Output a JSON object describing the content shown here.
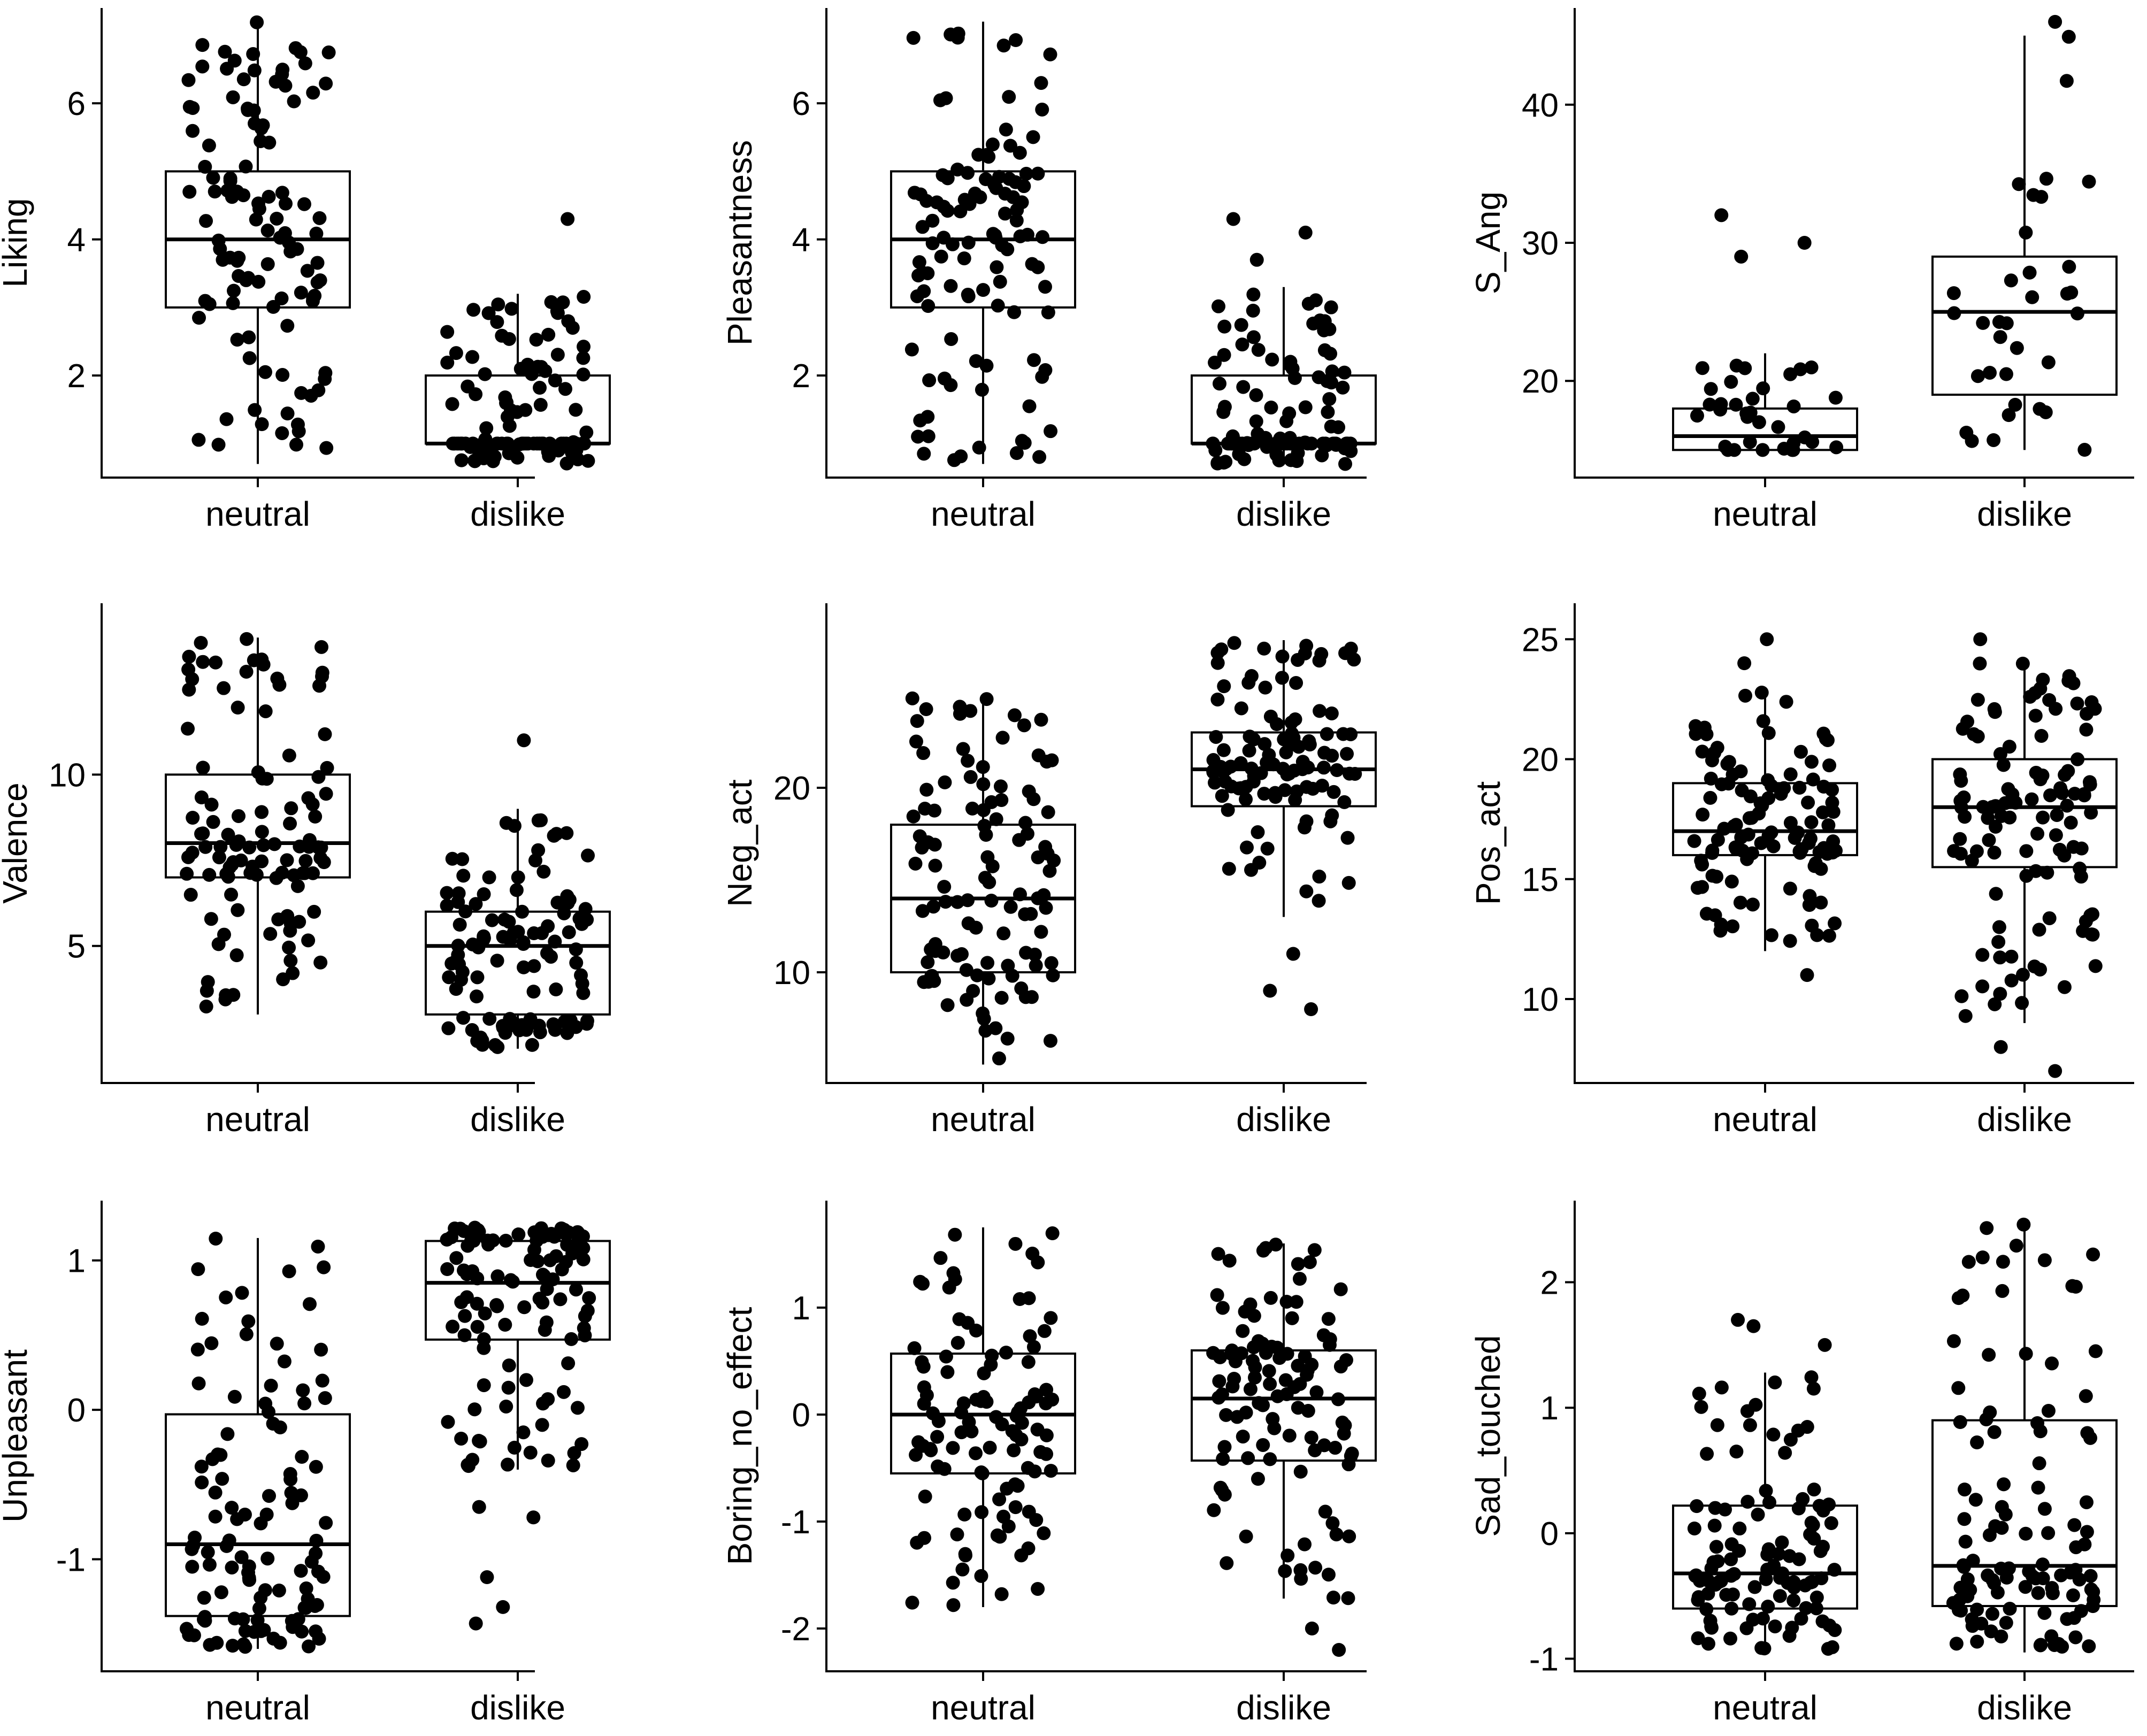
{
  "chart_data": [
    {
      "type": "box",
      "ylabel": "Liking",
      "categories": [
        "neutral",
        "dislike"
      ],
      "ylim": [
        0.5,
        7.4
      ],
      "yticks": [
        2,
        4,
        6
      ],
      "boxes": [
        {
          "category": "neutral",
          "min": 0.7,
          "q1": 3,
          "median": 4,
          "q3": 5,
          "max": 7.2
        },
        {
          "category": "dislike",
          "min": 0.7,
          "q1": 1,
          "median": 1,
          "q3": 2,
          "max": 3.2
        }
      ],
      "outliers": [
        {
          "category": "dislike",
          "values": [
            4.3
          ]
        }
      ]
    },
    {
      "type": "box",
      "ylabel": "Pleasantness",
      "categories": [
        "neutral",
        "dislike"
      ],
      "ylim": [
        0.5,
        7.4
      ],
      "yticks": [
        2,
        4,
        6
      ],
      "boxes": [
        {
          "category": "neutral",
          "min": 0.7,
          "q1": 3,
          "median": 4,
          "q3": 5,
          "max": 7.2
        },
        {
          "category": "dislike",
          "min": 0.7,
          "q1": 1,
          "median": 1,
          "q3": 2,
          "max": 3.3
        }
      ],
      "outliers": [
        {
          "category": "dislike",
          "values": [
            3.7,
            4.1,
            4.3
          ]
        }
      ]
    },
    {
      "type": "box",
      "ylabel": "S_Ang",
      "categories": [
        "neutral",
        "dislike"
      ],
      "ylim": [
        13,
        47
      ],
      "yticks": [
        20,
        30,
        40
      ],
      "boxes": [
        {
          "category": "neutral",
          "min": 15,
          "q1": 15,
          "median": 16,
          "q3": 18,
          "max": 22
        },
        {
          "category": "dislike",
          "min": 15,
          "q1": 19,
          "median": 25,
          "q3": 29,
          "max": 45
        }
      ],
      "outliers": [
        {
          "category": "neutral",
          "values": [
            29,
            30,
            32
          ]
        },
        {
          "category": "dislike",
          "values": [
            46
          ]
        }
      ]
    },
    {
      "type": "box",
      "ylabel": "Valence",
      "categories": [
        "neutral",
        "dislike"
      ],
      "ylim": [
        1,
        15
      ],
      "yticks": [
        5,
        10
      ],
      "boxes": [
        {
          "category": "neutral",
          "min": 3,
          "q1": 7,
          "median": 8,
          "q3": 10,
          "max": 14
        },
        {
          "category": "dislike",
          "min": 2,
          "q1": 3,
          "median": 5,
          "q3": 6,
          "max": 9
        }
      ],
      "outliers": [
        {
          "category": "dislike",
          "values": [
            11
          ]
        }
      ]
    },
    {
      "type": "box",
      "ylabel": "Neg_act",
      "categories": [
        "neutral",
        "dislike"
      ],
      "ylim": [
        4,
        30
      ],
      "yticks": [
        10,
        20
      ],
      "boxes": [
        {
          "category": "neutral",
          "min": 5,
          "q1": 10,
          "median": 14,
          "q3": 18,
          "max": 25
        },
        {
          "category": "dislike",
          "min": 13,
          "q1": 19,
          "median": 21,
          "q3": 23,
          "max": 28
        }
      ],
      "outliers": [
        {
          "category": "dislike",
          "values": [
            8,
            9,
            11
          ]
        }
      ]
    },
    {
      "type": "box",
      "ylabel": "Pos_act",
      "categories": [
        "neutral",
        "dislike"
      ],
      "ylim": [
        6.5,
        26.5
      ],
      "yticks": [
        10,
        15,
        20,
        25
      ],
      "boxes": [
        {
          "category": "neutral",
          "min": 12,
          "q1": 16,
          "median": 17,
          "q3": 19,
          "max": 23
        },
        {
          "category": "dislike",
          "min": 9,
          "q1": 15.5,
          "median": 18,
          "q3": 20,
          "max": 24
        }
      ],
      "outliers": [
        {
          "category": "neutral",
          "values": [
            11,
            24,
            25
          ]
        },
        {
          "category": "dislike",
          "values": [
            7,
            8,
            25
          ]
        }
      ]
    },
    {
      "type": "box",
      "ylabel": "Unpleasant",
      "categories": [
        "neutral",
        "dislike"
      ],
      "ylim": [
        -1.75,
        1.4
      ],
      "yticks": [
        -1,
        0,
        1
      ],
      "boxes": [
        {
          "category": "neutral",
          "min": -1.6,
          "q1": -1.38,
          "median": -0.9,
          "q3": -0.03,
          "max": 1.15
        },
        {
          "category": "dislike",
          "min": -0.4,
          "q1": 0.47,
          "median": 0.85,
          "q3": 1.13,
          "max": 1.22
        }
      ],
      "outliers": [
        {
          "category": "dislike",
          "values": [
            -1.43,
            -1.32,
            -1.12,
            -0.72,
            -0.65
          ]
        }
      ]
    },
    {
      "type": "box",
      "ylabel": "Boring_no_effect",
      "categories": [
        "neutral",
        "dislike"
      ],
      "ylim": [
        -2.4,
        2.0
      ],
      "yticks": [
        -2,
        -1,
        0,
        1
      ],
      "boxes": [
        {
          "category": "neutral",
          "min": -1.8,
          "q1": -0.55,
          "median": 0,
          "q3": 0.57,
          "max": 1.75
        },
        {
          "category": "dislike",
          "min": -1.72,
          "q1": -0.43,
          "median": 0.15,
          "q3": 0.6,
          "max": 1.6
        }
      ],
      "outliers": [
        {
          "category": "dislike",
          "values": [
            -2.2,
            -2.0
          ]
        }
      ]
    },
    {
      "type": "box",
      "ylabel": "Sad_touched",
      "categories": [
        "neutral",
        "dislike"
      ],
      "ylim": [
        -1.1,
        2.65
      ],
      "yticks": [
        -1,
        0,
        1,
        2
      ],
      "boxes": [
        {
          "category": "neutral",
          "min": -0.93,
          "q1": -0.6,
          "median": -0.32,
          "q3": 0.22,
          "max": 1.28
        },
        {
          "category": "dislike",
          "min": -0.95,
          "q1": -0.58,
          "median": -0.26,
          "q3": 0.9,
          "max": 2.5
        }
      ],
      "outliers": [
        {
          "category": "neutral",
          "values": [
            1.5,
            1.65,
            1.7
          ]
        }
      ]
    }
  ]
}
